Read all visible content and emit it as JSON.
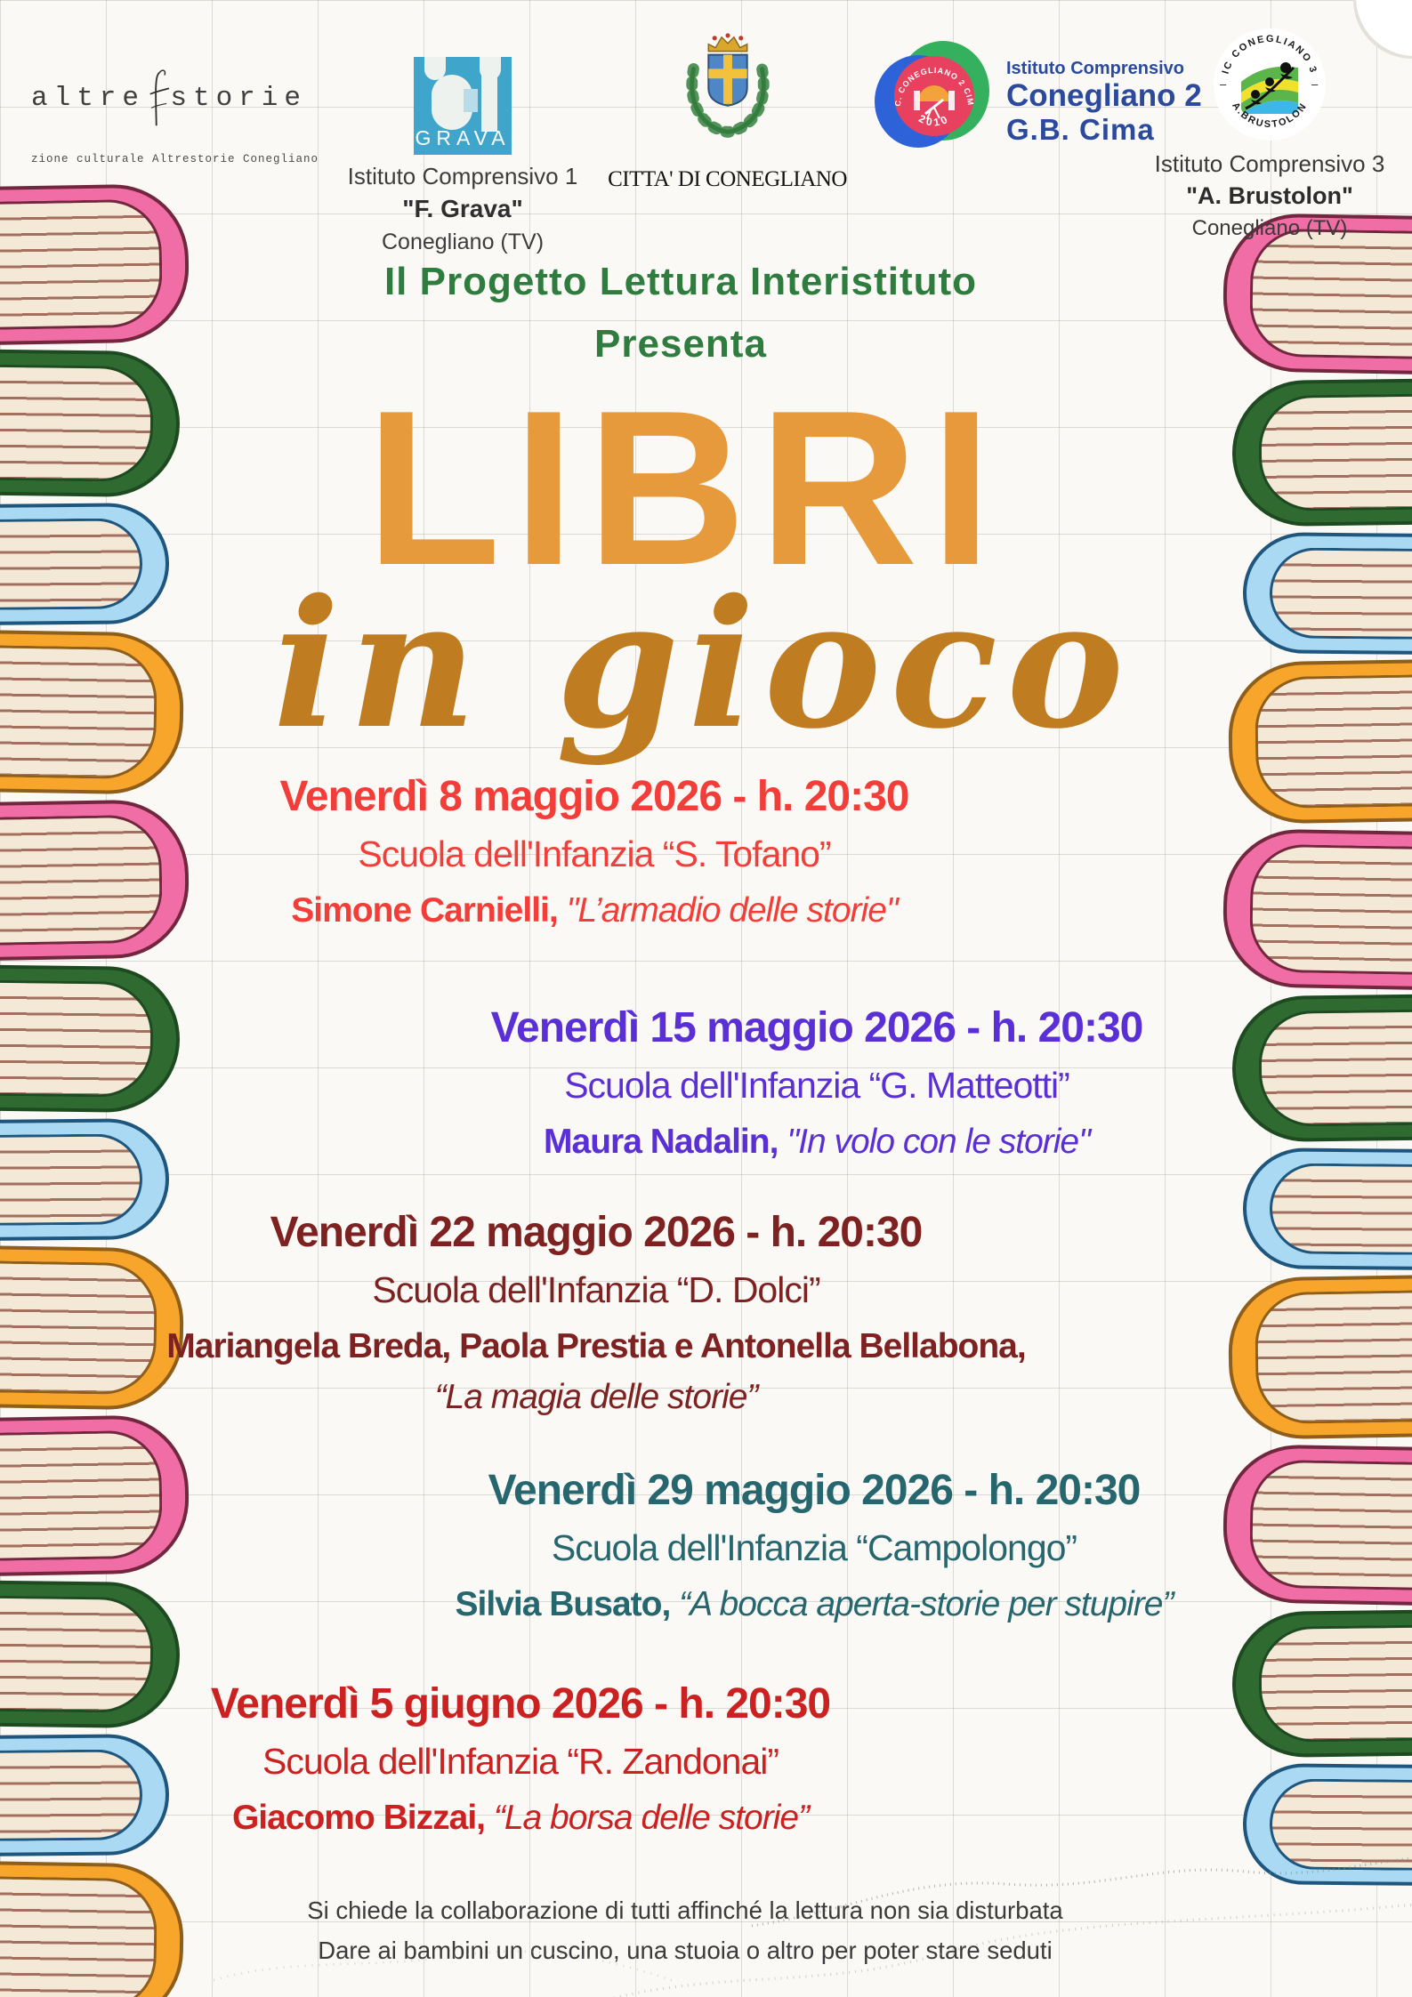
{
  "header": {
    "altrestorie": {
      "name_left": "altre",
      "name_right": "storie",
      "caption": "zione culturale Altrestorie Conegliano"
    },
    "grava": {
      "logo_label": "GRAVA",
      "line1": "Istituto Comprensivo 1",
      "line2": "\"F. Grava\"",
      "line3": "Conegliano (TV)"
    },
    "city": {
      "caption": "CITTA' DI CONEGLIANO"
    },
    "ic2": {
      "ring_text": "I.C. CONEGLIANO 2 CIMA",
      "ring_year": "2010",
      "line1": "Istituto Comprensivo",
      "line2": "Conegliano 2",
      "line3": "G.B. Cima"
    },
    "ic3": {
      "ring_top": "IC CONEGLIANO 3",
      "ring_bottom": "A.BRUSTOLON",
      "dash_left": "–",
      "dash_right": "–",
      "line1": "Istituto Comprensivo 3",
      "line2": "\"A. Brustolon\"",
      "line3": "Conegliano (TV)"
    }
  },
  "intro": {
    "line1": "Il Progetto Lettura Interistituto",
    "line2": "Presenta"
  },
  "title": {
    "main": "LIBRI",
    "script": "in gioco"
  },
  "events": [
    {
      "date": "Venerdì  8 maggio 2026 - h. 20:30",
      "school": "Scuola dell'Infanzia “S. Tofano”",
      "presenter": "Simone Carnielli,",
      "story": "\"L’armadio delle storie\"",
      "color": "#f23d38"
    },
    {
      "date": "Venerdì  15 maggio 2026 - h. 20:30",
      "school": "Scuola dell'Infanzia “G. Matteotti”",
      "presenter": "Maura Nadalin,",
      "story": "\"In volo con le storie\"",
      "color": "#5a2fd6"
    },
    {
      "date": "Venerdì  22 maggio 2026 - h. 20:30",
      "school": "Scuola dell'Infanzia “D. Dolci”",
      "presenter": "Mariangela Breda, Paola Prestia e Antonella Bellabona,",
      "story": "“La magia delle storie”",
      "color": "#7d2121"
    },
    {
      "date": "Venerdì  29 maggio 2026 - h. 20:30",
      "school": "Scuola dell'Infanzia “Campolongo”",
      "presenter": "Silvia Busato,",
      "story": "“A bocca aperta-storie per stupire”",
      "color": "#26666e"
    },
    {
      "date": "Venerdì 5 giugno 2026 - h. 20:30",
      "school": "Scuola dell'Infanzia “R. Zandonai”",
      "presenter": "Giacomo Bizzai,",
      "story": "“La borsa delle storie”",
      "color": "#cc2121"
    }
  ],
  "footer": {
    "line1": "Si chiede la collaborazione di tutti affinché la lettura non sia disturbata",
    "line2": "Dare ai bambini un cuscino, una stuoia o altro per poter stare seduti"
  },
  "colors": {
    "title_orange": "#e79a3c",
    "script_ochre": "#bf7c20",
    "intro_green": "#2e7d3e",
    "footer_gray": "#3b3b3b"
  },
  "decor": {
    "palette": {
      "pink": "#f06ea5",
      "green": "#2f6b31",
      "blue": "#a9d9f3",
      "orange": "#f7a62b",
      "pages": "#f3e9d6",
      "page_line": "#a3705f"
    },
    "left_books": [
      "pink",
      "green",
      "blue",
      "orange",
      "pink",
      "green",
      "blue",
      "orange",
      "pink",
      "green",
      "blue",
      "orange"
    ],
    "right_books": [
      "pink",
      "green",
      "blue",
      "orange",
      "pink",
      "green",
      "blue",
      "orange",
      "pink",
      "green",
      "blue"
    ]
  }
}
